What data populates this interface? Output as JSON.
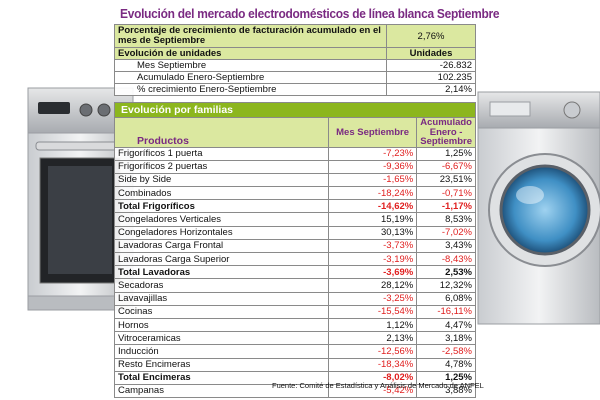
{
  "title": "Evolución del mercado electrodomésticos de línea blanca Septiembre",
  "summary": {
    "billing_growth_label": "Porcentaje de crecimiento de facturación acumulado en el mes de Septiembre",
    "billing_growth_value": "2,76%",
    "units_header_label": "Evolución de unidades",
    "units_header_value": "Unidades",
    "rows": [
      {
        "label": "Mes Septiembre",
        "value": "-26.832"
      },
      {
        "label": "Acumulado Enero-Septiembre",
        "value": "102.235"
      },
      {
        "label": "% crecimiento Enero-Septiembre",
        "value": "2,14%"
      }
    ]
  },
  "families": {
    "title": "Evolución por familias",
    "col_products": "Productos",
    "col_month": "Mes Septiembre",
    "col_accum": "Acumulado Enero - Septiembre",
    "rows": [
      {
        "product": "Frigoríficos 1 puerta",
        "month": "-7,23%",
        "accum": "1,25%",
        "total": false
      },
      {
        "product": "Frigoríficos 2 puertas",
        "month": "-9,36%",
        "accum": "-6,67%",
        "total": false
      },
      {
        "product": "Side by Side",
        "month": "-1,65%",
        "accum": "23,51%",
        "total": false
      },
      {
        "product": "Combinados",
        "month": "-18,24%",
        "accum": "-0,71%",
        "total": false
      },
      {
        "product": "Total Frigoríficos",
        "month": "-14,62%",
        "accum": "-1,17%",
        "total": true
      },
      {
        "product": "Congeladores Verticales",
        "month": "15,19%",
        "accum": "8,53%",
        "total": false
      },
      {
        "product": "Congeladores Horizontales",
        "month": "30,13%",
        "accum": "-7,02%",
        "total": false
      },
      {
        "product": "Lavadoras Carga Frontal",
        "month": "-3,73%",
        "accum": "3,43%",
        "total": false
      },
      {
        "product": "Lavadoras Carga Superior",
        "month": "-3,19%",
        "accum": "-8,43%",
        "total": false
      },
      {
        "product": "Total Lavadoras",
        "month": "-3,69%",
        "accum": "2,53%",
        "total": true
      },
      {
        "product": "Secadoras",
        "month": "28,12%",
        "accum": "12,32%",
        "total": false
      },
      {
        "product": "Lavavajillas",
        "month": "-3,25%",
        "accum": "6,08%",
        "total": false
      },
      {
        "product": "Cocinas",
        "month": "-15,54%",
        "accum": "-16,11%",
        "total": false
      },
      {
        "product": "Hornos",
        "month": "1,12%",
        "accum": "4,47%",
        "total": false
      },
      {
        "product": "Vitroceramicas",
        "month": "2,13%",
        "accum": "3,18%",
        "total": false
      },
      {
        "product": "Inducción",
        "month": "-12,56%",
        "accum": "-2,58%",
        "total": false
      },
      {
        "product": "Resto Encimeras",
        "month": "-18,34%",
        "accum": "4,78%",
        "total": false
      },
      {
        "product": "Total Encimeras",
        "month": "-8,02%",
        "accum": "1,25%",
        "total": true
      },
      {
        "product": "Campanas",
        "month": "-5,42%",
        "accum": "3,88%",
        "total": false
      }
    ]
  },
  "source": "Fuente: Comité de Estadística y Análisis de Mercado de ANFEL",
  "colors": {
    "title": "#7a2a82",
    "header_bar": "#8cb61e",
    "header_light": "#dbe8a0",
    "negative": "#e02020"
  }
}
